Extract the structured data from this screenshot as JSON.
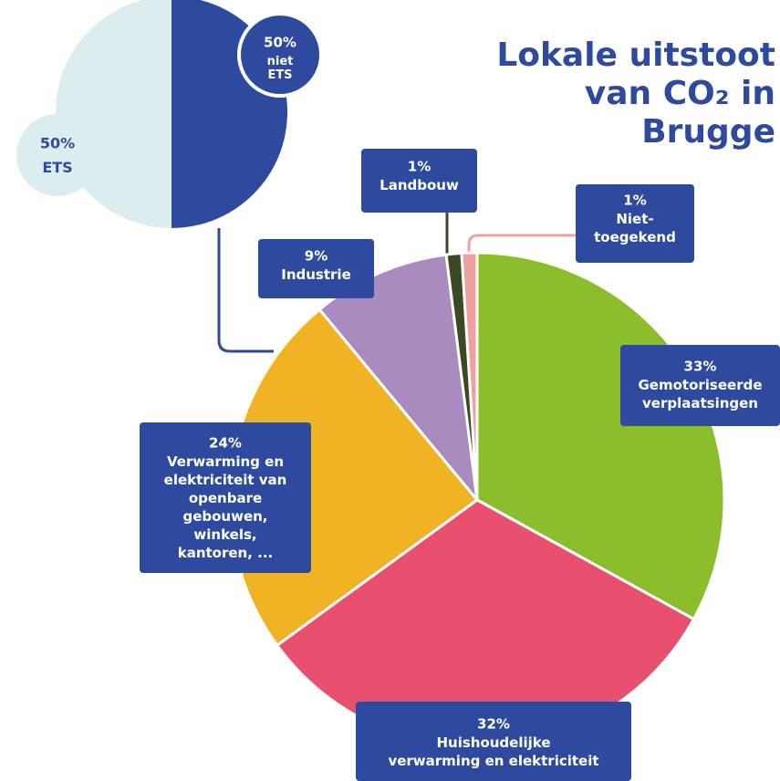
{
  "chart_data": [
    {
      "type": "pie",
      "categories": [
        "niet\nETS",
        "ETS"
      ],
      "values": [
        50,
        50
      ],
      "value_labels": [
        "50%",
        "50%"
      ],
      "colors": [
        "#2e4a9e",
        "#dcedf0"
      ]
    },
    {
      "type": "pie",
      "title": "Lokale uitstoot\nvan CO₂ in\nBrugge",
      "categories": [
        "Gemotoriseerde\nverplaatsingen",
        "Huishoudelijke\nverwarming en elektriciteit",
        "Verwarming en\nelektriciteit van\nopenbare\ngebouwen,\nwinkels,\nkantoren, ...",
        "Industrie",
        "Landbouw",
        "Niet-\ntoegekend"
      ],
      "values": [
        33,
        32,
        24,
        9,
        1,
        1
      ],
      "value_labels": [
        "33%",
        "32%",
        "24%",
        "9%",
        "1%",
        "1%"
      ],
      "colors": [
        "#8cbd2a",
        "#e8506e",
        "#f0b323",
        "#a98bbf",
        "#3b4a24",
        "#f0a0a0"
      ]
    }
  ]
}
